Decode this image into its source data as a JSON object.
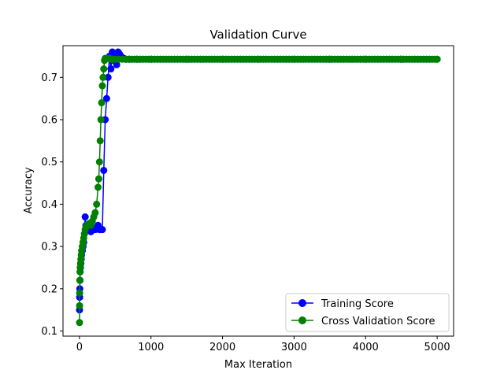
{
  "chart_data": {
    "type": "line",
    "title": "Validation Curve",
    "xlabel": "Max Iteration",
    "ylabel": "Accuracy",
    "xlim": [
      -230,
      5230
    ],
    "ylim": [
      0.088,
      0.775
    ],
    "xticks": [
      0,
      1000,
      2000,
      3000,
      4000,
      5000
    ],
    "xtick_labels": [
      "0",
      "1000",
      "2000",
      "3000",
      "4000",
      "5000"
    ],
    "yticks": [
      0.1,
      0.2,
      0.3,
      0.4,
      0.5,
      0.6,
      0.7
    ],
    "ytick_labels": [
      "0.1",
      "0.2",
      "0.3",
      "0.4",
      "0.5",
      "0.6",
      "0.7"
    ],
    "grid": false,
    "legend_position": "lower-right",
    "series": [
      {
        "name": "Training Score",
        "color": "#0000ff",
        "marker": "circle",
        "x": [
          1,
          3,
          5,
          8,
          10,
          15,
          20,
          25,
          30,
          40,
          50,
          60,
          70,
          80,
          90,
          100,
          120,
          140,
          160,
          180,
          200,
          220,
          240,
          260,
          280,
          300,
          320,
          340,
          360,
          380,
          400,
          420,
          440,
          460,
          480,
          500,
          520,
          540,
          560,
          580,
          600,
          620,
          650,
          700,
          800,
          1000,
          1500,
          2000,
          2500,
          3000,
          3500,
          4000,
          4500,
          5000
        ],
        "y": [
          0.15,
          0.18,
          0.2,
          0.22,
          0.24,
          0.25,
          0.26,
          0.27,
          0.28,
          0.29,
          0.3,
          0.31,
          0.33,
          0.37,
          0.35,
          0.34,
          0.34,
          0.345,
          0.335,
          0.345,
          0.34,
          0.34,
          0.345,
          0.35,
          0.34,
          0.34,
          0.34,
          0.48,
          0.6,
          0.65,
          0.7,
          0.75,
          0.72,
          0.76,
          0.74,
          0.75,
          0.73,
          0.76,
          0.755,
          0.75,
          0.745,
          0.745,
          0.743,
          0.743,
          0.743,
          0.743,
          0.743,
          0.743,
          0.743,
          0.743,
          0.743,
          0.743,
          0.743,
          0.743
        ]
      },
      {
        "name": "Cross Validation Score",
        "color": "#008000",
        "marker": "circle",
        "x": [
          1,
          2,
          3,
          5,
          8,
          10,
          15,
          20,
          25,
          30,
          40,
          50,
          60,
          70,
          80,
          90,
          100,
          120,
          140,
          160,
          180,
          200,
          220,
          240,
          260,
          270,
          280,
          290,
          300,
          310,
          320,
          330,
          340,
          350,
          360,
          380,
          400,
          420,
          440,
          460,
          480,
          500,
          550,
          600,
          700,
          800,
          1000,
          1500,
          2000,
          2500,
          3000,
          3500,
          4000,
          4500,
          5000
        ],
        "y": [
          0.12,
          0.16,
          0.19,
          0.22,
          0.24,
          0.25,
          0.26,
          0.27,
          0.28,
          0.29,
          0.3,
          0.31,
          0.32,
          0.33,
          0.34,
          0.345,
          0.35,
          0.35,
          0.355,
          0.35,
          0.36,
          0.37,
          0.38,
          0.4,
          0.44,
          0.46,
          0.5,
          0.55,
          0.6,
          0.64,
          0.68,
          0.7,
          0.72,
          0.74,
          0.745,
          0.745,
          0.745,
          0.745,
          0.743,
          0.743,
          0.743,
          0.743,
          0.743,
          0.743,
          0.743,
          0.743,
          0.743,
          0.743,
          0.743,
          0.743,
          0.743,
          0.743,
          0.743,
          0.743,
          0.743
        ]
      }
    ]
  }
}
